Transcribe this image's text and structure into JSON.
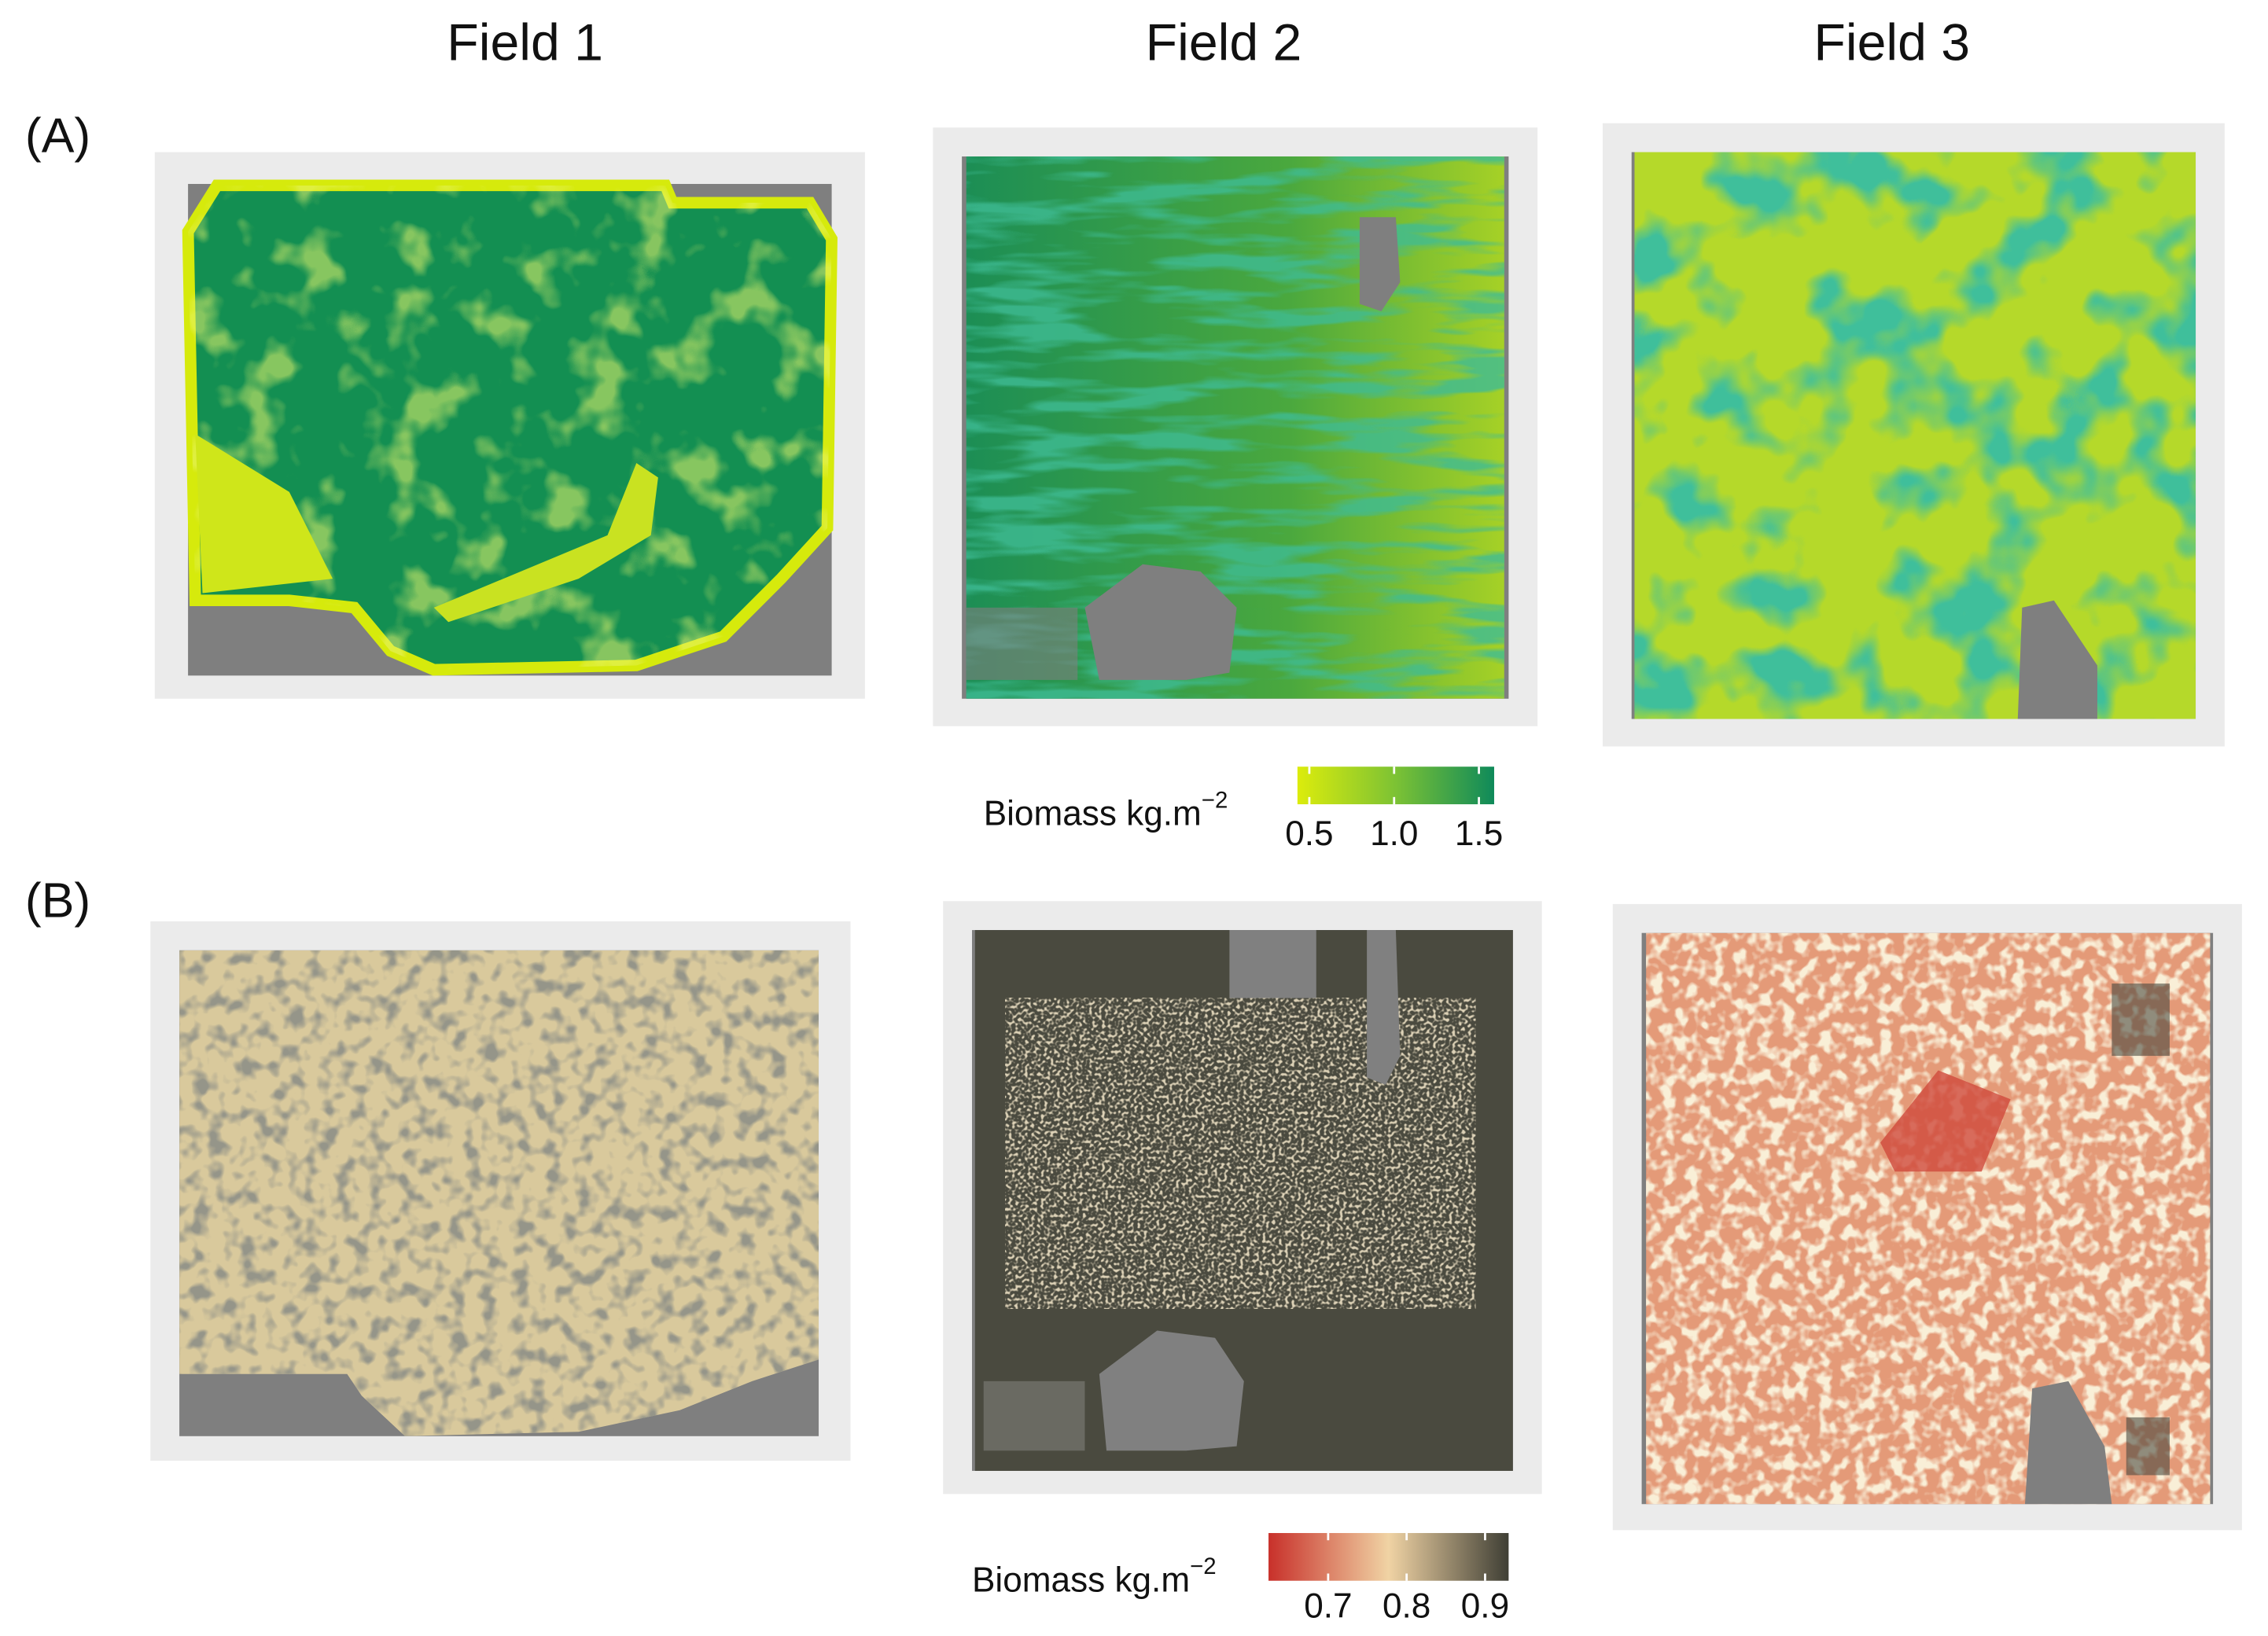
{
  "columns": [
    "Field 1",
    "Field 2",
    "Field 3"
  ],
  "rows": [
    "(A)",
    "(B)"
  ],
  "legends": [
    {
      "title": "Biomass kg.m",
      "superscript": "−2",
      "lim": [
        0.43,
        1.59
      ],
      "ticks": [
        0.5,
        {
          "value": 1,
          "label": "1.0"
        },
        1.5
      ],
      "colors": [
        "#dcec0c",
        "#7cc234",
        "#0f8a5a"
      ]
    },
    {
      "title": "Biomass kg.m",
      "superscript": "−2",
      "lim": [
        0.624,
        0.93
      ],
      "ticks": [
        0.7,
        0.8,
        0.9
      ],
      "colors": [
        "#c8302a",
        "#f0d3a4",
        "#3f3f35"
      ]
    }
  ]
}
